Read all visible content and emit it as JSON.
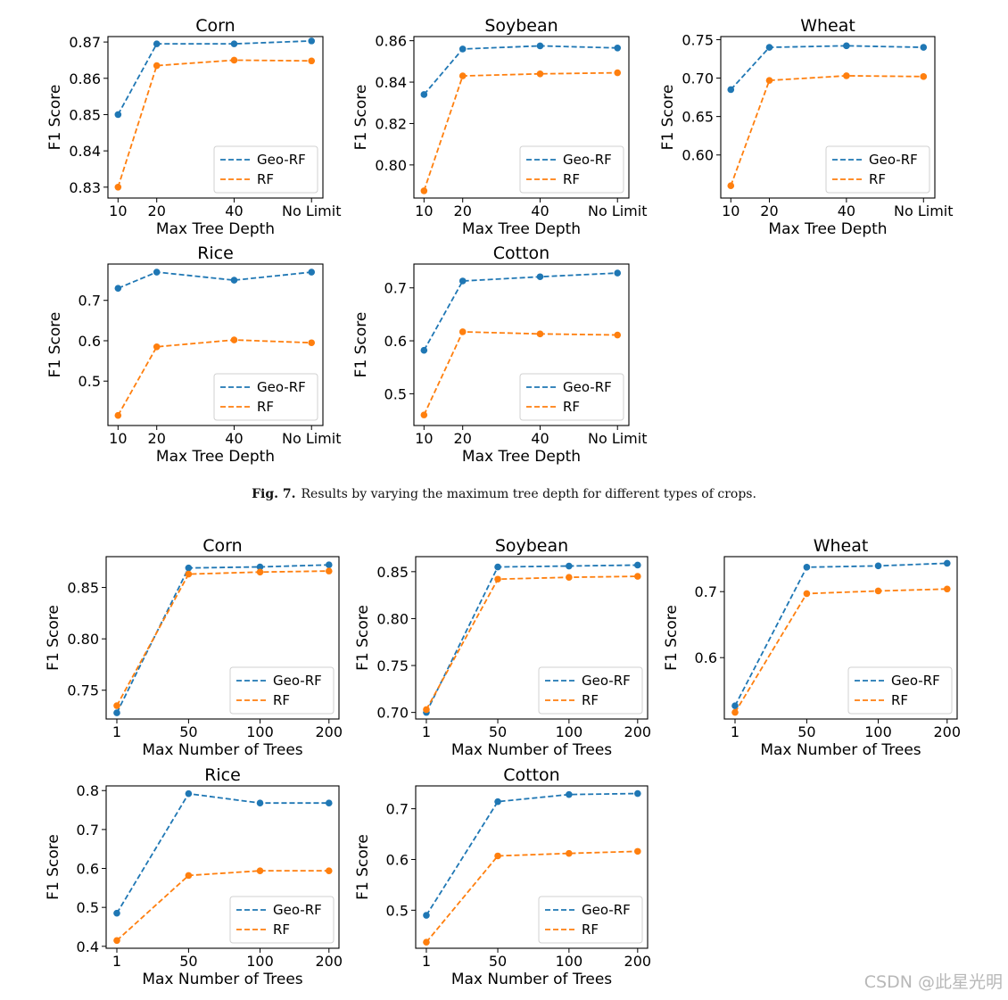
{
  "figure_caption": {
    "label": "Fig. 7.",
    "text": "Results by varying the maximum tree depth for different types of crops."
  },
  "watermark": "CSDN @此星光明",
  "colors": {
    "geo_rf": "#1f77b4",
    "rf": "#ff7f0e"
  },
  "chart_data": [
    {
      "type": "line",
      "title": "Corn",
      "xlabel": "Max Tree Depth",
      "ylabel": "F1 Score",
      "categories": [
        "10",
        "20",
        "40",
        "No Limit"
      ],
      "ylim": [
        0.827,
        0.8715
      ],
      "yticks": [
        0.83,
        0.84,
        0.85,
        0.86,
        0.87
      ],
      "ytick_labels": [
        "0.83",
        "0.84",
        "0.85",
        "0.86",
        "0.87"
      ],
      "legend": "lower-right",
      "series": [
        {
          "name": "Geo-RF",
          "values": [
            0.85,
            0.8695,
            0.8695,
            0.8703
          ]
        },
        {
          "name": "RF",
          "values": [
            0.83,
            0.8635,
            0.865,
            0.8648
          ]
        }
      ]
    },
    {
      "type": "line",
      "title": "Soybean",
      "xlabel": "Max Tree Depth",
      "ylabel": "F1 Score",
      "categories": [
        "10",
        "20",
        "40",
        "No Limit"
      ],
      "ylim": [
        0.784,
        0.862
      ],
      "yticks": [
        0.8,
        0.82,
        0.84,
        0.86
      ],
      "ytick_labels": [
        "0.80",
        "0.82",
        "0.84",
        "0.86"
      ],
      "legend": "lower-right",
      "series": [
        {
          "name": "Geo-RF",
          "values": [
            0.834,
            0.856,
            0.8575,
            0.8565
          ]
        },
        {
          "name": "RF",
          "values": [
            0.7875,
            0.843,
            0.844,
            0.8445
          ]
        }
      ]
    },
    {
      "type": "line",
      "title": "Wheat",
      "xlabel": "Max Tree Depth",
      "ylabel": "F1 Score",
      "categories": [
        "10",
        "20",
        "40",
        "No Limit"
      ],
      "ylim": [
        0.544,
        0.754
      ],
      "yticks": [
        0.6,
        0.65,
        0.7,
        0.75
      ],
      "ytick_labels": [
        "0.60",
        "0.65",
        "0.70",
        "0.75"
      ],
      "legend": "lower-right",
      "series": [
        {
          "name": "Geo-RF",
          "values": [
            0.685,
            0.74,
            0.742,
            0.74
          ]
        },
        {
          "name": "RF",
          "values": [
            0.56,
            0.697,
            0.703,
            0.702
          ]
        }
      ]
    },
    {
      "type": "line",
      "title": "Rice",
      "xlabel": "Max Tree Depth",
      "ylabel": "F1 Score",
      "categories": [
        "10",
        "20",
        "40",
        "No Limit"
      ],
      "ylim": [
        0.39,
        0.79
      ],
      "yticks": [
        0.5,
        0.6,
        0.7
      ],
      "ytick_labels": [
        "0.5",
        "0.6",
        "0.7"
      ],
      "legend": "lower-right",
      "series": [
        {
          "name": "Geo-RF",
          "values": [
            0.73,
            0.77,
            0.75,
            0.77
          ]
        },
        {
          "name": "RF",
          "values": [
            0.415,
            0.585,
            0.602,
            0.595
          ]
        }
      ]
    },
    {
      "type": "line",
      "title": "Cotton",
      "xlabel": "Max Tree Depth",
      "ylabel": "F1 Score",
      "categories": [
        "10",
        "20",
        "40",
        "No Limit"
      ],
      "ylim": [
        0.44,
        0.745
      ],
      "yticks": [
        0.5,
        0.6,
        0.7
      ],
      "ytick_labels": [
        "0.5",
        "0.6",
        "0.7"
      ],
      "legend": "lower-right",
      "series": [
        {
          "name": "Geo-RF",
          "values": [
            0.582,
            0.713,
            0.721,
            0.728
          ]
        },
        {
          "name": "RF",
          "values": [
            0.46,
            0.617,
            0.613,
            0.611
          ]
        }
      ]
    },
    {
      "type": "line",
      "title": "Corn",
      "xlabel": "Max Number of Trees",
      "ylabel": "F1 Score",
      "categories": [
        "1",
        "50",
        "100",
        "200"
      ],
      "ylim": [
        0.722,
        0.88
      ],
      "yticks": [
        0.75,
        0.8,
        0.85
      ],
      "ytick_labels": [
        "0.75",
        "0.80",
        "0.85"
      ],
      "legend": "lower-right",
      "series": [
        {
          "name": "Geo-RF",
          "values": [
            0.728,
            0.869,
            0.87,
            0.872
          ]
        },
        {
          "name": "RF",
          "values": [
            0.735,
            0.863,
            0.865,
            0.866
          ]
        }
      ]
    },
    {
      "type": "line",
      "title": "Soybean",
      "xlabel": "Max Number of Trees",
      "ylabel": "F1 Score",
      "categories": [
        "1",
        "50",
        "100",
        "200"
      ],
      "ylim": [
        0.693,
        0.866
      ],
      "yticks": [
        0.7,
        0.75,
        0.8,
        0.85
      ],
      "ytick_labels": [
        "0.70",
        "0.75",
        "0.80",
        "0.85"
      ],
      "legend": "lower-right",
      "series": [
        {
          "name": "Geo-RF",
          "values": [
            0.7,
            0.855,
            0.856,
            0.857
          ]
        },
        {
          "name": "RF",
          "values": [
            0.703,
            0.842,
            0.844,
            0.845
          ]
        }
      ]
    },
    {
      "type": "line",
      "title": "Wheat",
      "xlabel": "Max Number of Trees",
      "ylabel": "F1 Score",
      "categories": [
        "1",
        "50",
        "100",
        "200"
      ],
      "ylim": [
        0.507,
        0.753
      ],
      "yticks": [
        0.6,
        0.7
      ],
      "ytick_labels": [
        "0.6",
        "0.7"
      ],
      "legend": "lower-right",
      "series": [
        {
          "name": "Geo-RF",
          "values": [
            0.527,
            0.737,
            0.739,
            0.743
          ]
        },
        {
          "name": "RF",
          "values": [
            0.517,
            0.697,
            0.701,
            0.704
          ]
        }
      ]
    },
    {
      "type": "line",
      "title": "Rice",
      "xlabel": "Max Number of Trees",
      "ylabel": "F1 Score",
      "categories": [
        "1",
        "50",
        "100",
        "200"
      ],
      "ylim": [
        0.395,
        0.812
      ],
      "yticks": [
        0.4,
        0.5,
        0.6,
        0.7,
        0.8
      ],
      "ytick_labels": [
        "0.4",
        "0.5",
        "0.6",
        "0.7",
        "0.8"
      ],
      "legend": "lower-right",
      "series": [
        {
          "name": "Geo-RF",
          "values": [
            0.485,
            0.792,
            0.768,
            0.768
          ]
        },
        {
          "name": "RF",
          "values": [
            0.415,
            0.582,
            0.594,
            0.594
          ]
        }
      ]
    },
    {
      "type": "line",
      "title": "Cotton",
      "xlabel": "Max Number of Trees",
      "ylabel": "F1 Score",
      "categories": [
        "1",
        "50",
        "100",
        "200"
      ],
      "ylim": [
        0.425,
        0.745
      ],
      "yticks": [
        0.5,
        0.6,
        0.7
      ],
      "ytick_labels": [
        "0.5",
        "0.6",
        "0.7"
      ],
      "legend": "lower-right",
      "series": [
        {
          "name": "Geo-RF",
          "values": [
            0.49,
            0.714,
            0.728,
            0.73
          ]
        },
        {
          "name": "RF",
          "values": [
            0.437,
            0.607,
            0.612,
            0.616
          ]
        }
      ]
    }
  ]
}
